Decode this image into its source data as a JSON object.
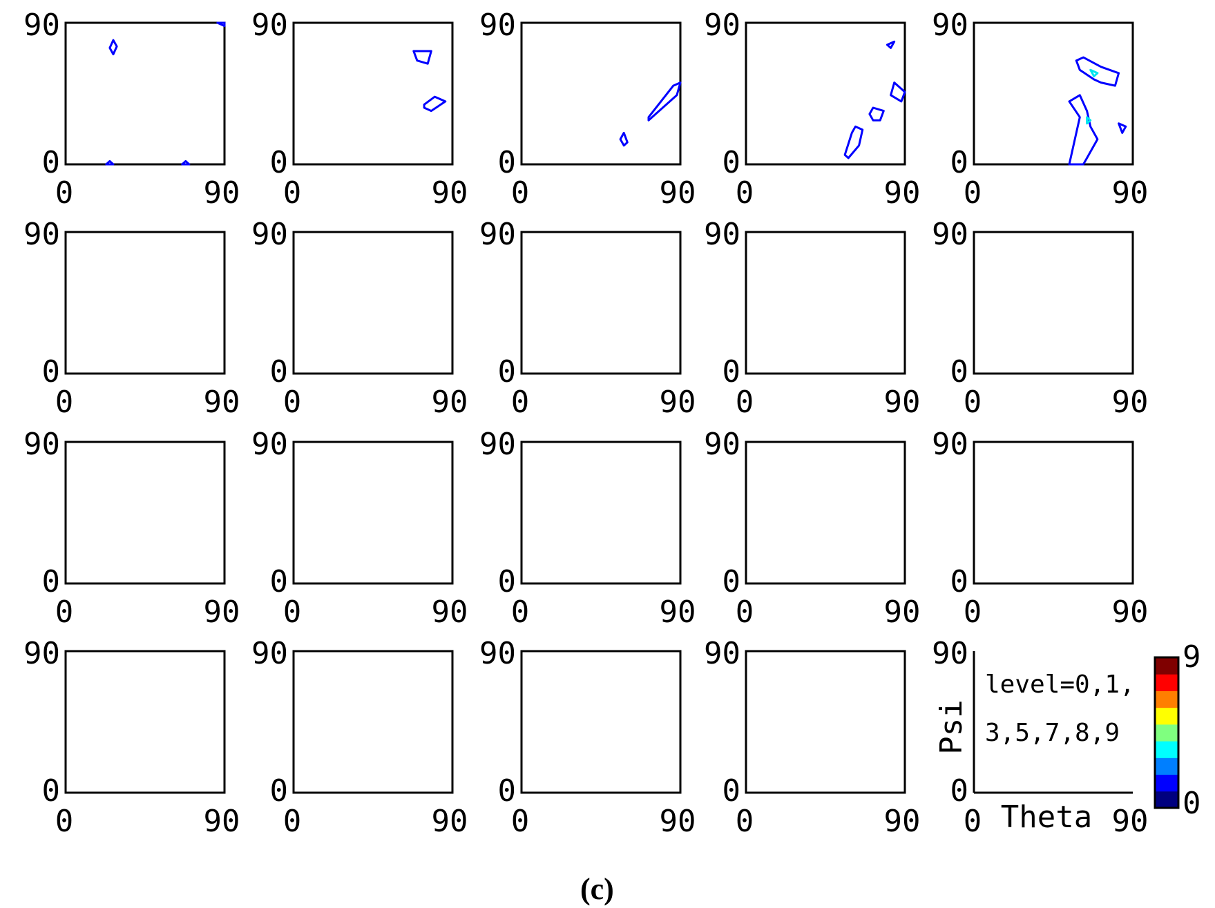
{
  "figure": {
    "caption": "(c)",
    "colorbar": {
      "min_label": "0",
      "max_label": "9",
      "colors": [
        "#00007f",
        "#0000ff",
        "#007fff",
        "#00ffff",
        "#7fff7f",
        "#ffff00",
        "#ff7f00",
        "#ff0000",
        "#7f0000"
      ]
    },
    "level_colors": {
      "0": "#0000ff",
      "1": "#00e5ee",
      "3": "#00b050",
      "5": "#ffb000",
      "7": "#ff0000",
      "8": "#b00000",
      "9": "#7f0000"
    }
  },
  "chart_data": {
    "type": "contour",
    "grid": {
      "rows": 4,
      "cols": 5
    },
    "x_ticks": [
      "0",
      "90"
    ],
    "y_ticks": [
      "0",
      "90"
    ],
    "xlim": [
      0,
      90
    ],
    "ylim": [
      0,
      90
    ],
    "xlabel": "Theta",
    "ylabel": "Psi",
    "legend": {
      "lines": [
        "level=0,1,",
        "3,5,7,8,9"
      ],
      "levels": [
        0,
        1,
        3,
        5,
        7,
        8,
        9
      ]
    },
    "panels": [
      {
        "contours": [
          {
            "level": 0,
            "points": [
              [
                25,
                74
              ],
              [
                27,
                79
              ],
              [
                29,
                75
              ],
              [
                27,
                70
              ]
            ]
          },
          {
            "level": 0,
            "points": [
              [
                23,
                0
              ],
              [
                25,
                2
              ],
              [
                27,
                0
              ]
            ]
          },
          {
            "level": 0,
            "points": [
              [
                66,
                0
              ],
              [
                68,
                2
              ],
              [
                70,
                0
              ]
            ]
          },
          {
            "level": 0,
            "points": [
              [
                86,
                90
              ],
              [
                90,
                88
              ],
              [
                90,
                90
              ]
            ]
          }
        ]
      },
      {
        "contours": [
          {
            "level": 0,
            "points": [
              [
                68,
                72
              ],
              [
                78,
                72
              ],
              [
                76,
                64
              ],
              [
                70,
                66
              ]
            ]
          },
          {
            "level": 0,
            "points": [
              [
                74,
                38
              ],
              [
                80,
                43
              ],
              [
                86,
                40
              ],
              [
                78,
                34
              ],
              [
                74,
                36
              ]
            ]
          }
        ]
      },
      {
        "contours": [
          {
            "level": 0,
            "points": [
              [
                56,
                16
              ],
              [
                58,
                20
              ],
              [
                60,
                14
              ],
              [
                58,
                12
              ]
            ]
          },
          {
            "level": 0,
            "points": [
              [
                72,
                30
              ],
              [
                86,
                50
              ],
              [
                90,
                52
              ],
              [
                88,
                44
              ],
              [
                72,
                28
              ]
            ]
          }
        ]
      },
      {
        "contours": [
          {
            "level": 0,
            "points": [
              [
                80,
                76
              ],
              [
                84,
                78
              ],
              [
                82,
                74
              ]
            ]
          },
          {
            "level": 0,
            "points": [
              [
                86,
                50
              ],
              [
                90,
                46
              ],
              [
                88,
                40
              ],
              [
                82,
                44
              ],
              [
                84,
                52
              ]
            ]
          },
          {
            "level": 0,
            "points": [
              [
                70,
                32
              ],
              [
                72,
                36
              ],
              [
                78,
                34
              ],
              [
                76,
                28
              ],
              [
                72,
                28
              ]
            ]
          },
          {
            "level": 0,
            "points": [
              [
                56,
                6
              ],
              [
                60,
                20
              ],
              [
                62,
                24
              ],
              [
                66,
                22
              ],
              [
                64,
                12
              ],
              [
                58,
                4
              ]
            ]
          }
        ]
      },
      {
        "contours": [
          {
            "level": 0,
            "points": [
              [
                58,
                66
              ],
              [
                62,
                68
              ],
              [
                72,
                62
              ],
              [
                82,
                58
              ],
              [
                80,
                50
              ],
              [
                72,
                52
              ],
              [
                68,
                54
              ],
              [
                60,
                60
              ]
            ]
          },
          {
            "level": 1,
            "points": [
              [
                66,
                60
              ],
              [
                70,
                58
              ],
              [
                68,
                56
              ]
            ]
          },
          {
            "level": 0,
            "points": [
              [
                54,
                0
              ],
              [
                58,
                20
              ],
              [
                60,
                30
              ],
              [
                54,
                40
              ],
              [
                60,
                44
              ],
              [
                64,
                34
              ],
              [
                66,
                24
              ],
              [
                70,
                16
              ],
              [
                64,
                4
              ],
              [
                62,
                0
              ]
            ]
          },
          {
            "level": 1,
            "points": [
              [
                64,
                30
              ],
              [
                66,
                28
              ],
              [
                64,
                26
              ]
            ]
          },
          {
            "level": 0,
            "points": [
              [
                82,
                26
              ],
              [
                86,
                24
              ],
              [
                84,
                20
              ]
            ]
          }
        ]
      }
    ]
  }
}
